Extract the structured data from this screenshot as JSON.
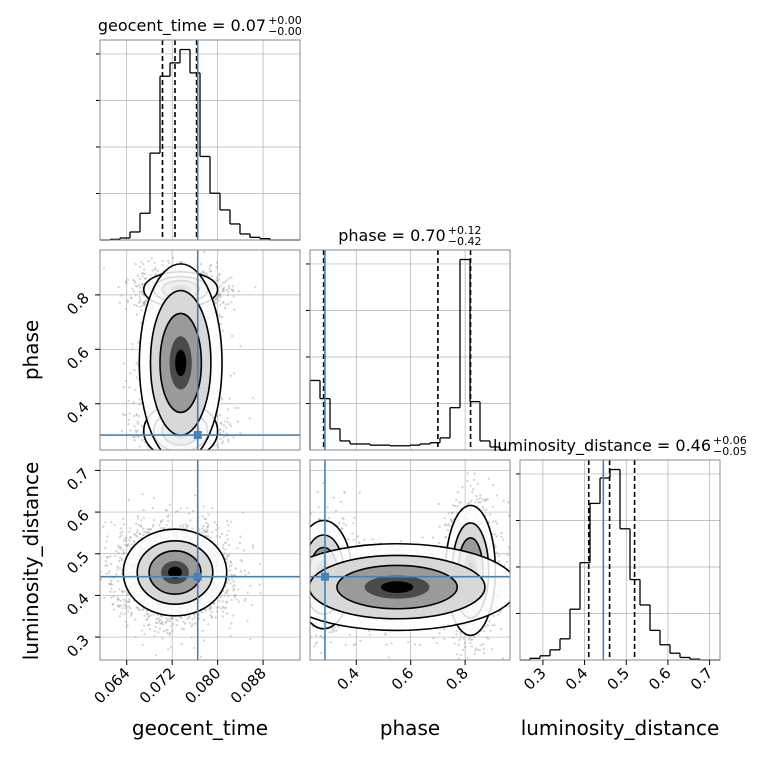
{
  "parameters": [
    "geocent_time",
    "phase",
    "luminosity_distance"
  ],
  "titles": [
    {
      "param": "geocent_time",
      "prefix": "geocent_time = 0.07",
      "upper": "+0.00",
      "lower": "−0.00"
    },
    {
      "param": "phase",
      "prefix": "phase = 0.70",
      "upper": "+0.12",
      "lower": "−0.42"
    },
    {
      "param": "luminosity_distance",
      "prefix": "luminosity_distance = 0.46",
      "upper": "+0.06",
      "lower": "−0.05"
    }
  ],
  "axis_labels": {
    "geocent_time": "geocent_time",
    "phase": "phase",
    "luminosity_distance": "luminosity_distance"
  },
  "colors": {
    "truth": "#4682b4",
    "hist": "#000000",
    "grid": "#b0b0b0",
    "scatter": "#9a9a9a"
  },
  "chart_data": {
    "type": "corner",
    "ranges": {
      "geocent_time": [
        0.0593,
        0.0945
      ],
      "phase": [
        0.23,
        0.965
      ],
      "luminosity_distance": [
        0.245,
        0.725
      ]
    },
    "ticks": {
      "geocent_time": {
        "values": [
          0.064,
          0.072,
          0.08,
          0.088
        ],
        "labels": [
          "0.064",
          "0.072",
          "0.080",
          "0.088"
        ]
      },
      "phase": {
        "values": [
          0.4,
          0.6,
          0.8
        ],
        "labels": [
          "0.4",
          "0.6",
          "0.8"
        ]
      },
      "luminosity_distance": {
        "values": [
          0.3,
          0.4,
          0.5,
          0.6,
          0.7
        ],
        "labels": [
          "0.3",
          "0.4",
          "0.5",
          "0.6",
          "0.7"
        ]
      }
    },
    "truths": {
      "geocent_time": 0.0765,
      "phase": 0.285,
      "luminosity_distance": 0.445
    },
    "quantiles": {
      "geocent_time": [
        0.0703,
        0.0725,
        0.0763
      ],
      "phase": [
        0.28,
        0.7,
        0.82
      ],
      "luminosity_distance": [
        0.41,
        0.46,
        0.52
      ]
    },
    "histograms": {
      "geocent_time": {
        "edges": [
          0.0593,
          0.06106,
          0.06282,
          0.06458,
          0.06634,
          0.0681,
          0.06986,
          0.07162,
          0.07338,
          0.07514,
          0.0769,
          0.07866,
          0.08042,
          0.08218,
          0.08394,
          0.0857,
          0.08746,
          0.08922,
          0.09098,
          0.09274,
          0.0945
        ],
        "counts": [
          0,
          1,
          3,
          12,
          40,
          130,
          245,
          265,
          285,
          250,
          125,
          70,
          45,
          24,
          9,
          4,
          2,
          0,
          0,
          0
        ]
      },
      "phase": {
        "edges": [
          0.23,
          0.26675,
          0.3035,
          0.34025,
          0.377,
          0.41375,
          0.4505,
          0.48725,
          0.524,
          0.56075,
          0.5975,
          0.63425,
          0.671,
          0.70775,
          0.7445,
          0.78125,
          0.818,
          0.85475,
          0.8915,
          0.92825,
          0.965
        ],
        "counts": [
          115,
          85,
          35,
          15,
          10,
          10,
          8,
          8,
          7,
          7,
          8,
          10,
          12,
          20,
          70,
          315,
          80,
          15,
          5,
          0
        ]
      },
      "luminosity_distance": {
        "edges": [
          0.245,
          0.269,
          0.293,
          0.317,
          0.341,
          0.365,
          0.389,
          0.413,
          0.437,
          0.461,
          0.485,
          0.509,
          0.533,
          0.557,
          0.581,
          0.605,
          0.629,
          0.653,
          0.677,
          0.701,
          0.725
        ],
        "counts": [
          0,
          2,
          5,
          12,
          25,
          60,
          115,
          185,
          215,
          225,
          155,
          95,
          65,
          35,
          18,
          8,
          3,
          1,
          0,
          0
        ]
      }
    },
    "modes": [
      {
        "x": "geocent_time",
        "y": "phase",
        "clusters": [
          {
            "cx": 0.0735,
            "cy": 0.82,
            "sx": 0.0025,
            "sy": 0.025,
            "w": 0.5
          },
          {
            "cx": 0.0735,
            "cy": 0.3,
            "sx": 0.0025,
            "sy": 0.04,
            "w": 0.25
          },
          {
            "cx": 0.0735,
            "cy": 0.55,
            "sx": 0.0028,
            "sy": 0.14,
            "w": 0.25
          }
        ]
      },
      {
        "x": "geocent_time",
        "y": "luminosity_distance",
        "clusters": [
          {
            "cx": 0.0725,
            "cy": 0.455,
            "sx": 0.0035,
            "sy": 0.04,
            "w": 1.0
          }
        ]
      },
      {
        "x": "phase",
        "y": "luminosity_distance",
        "clusters": [
          {
            "cx": 0.82,
            "cy": 0.46,
            "sx": 0.035,
            "sy": 0.06,
            "w": 0.5
          },
          {
            "cx": 0.28,
            "cy": 0.45,
            "sx": 0.04,
            "sy": 0.05,
            "w": 0.3
          },
          {
            "cx": 0.55,
            "cy": 0.42,
            "sx": 0.17,
            "sy": 0.04,
            "w": 0.2
          }
        ]
      }
    ],
    "grid": true
  }
}
